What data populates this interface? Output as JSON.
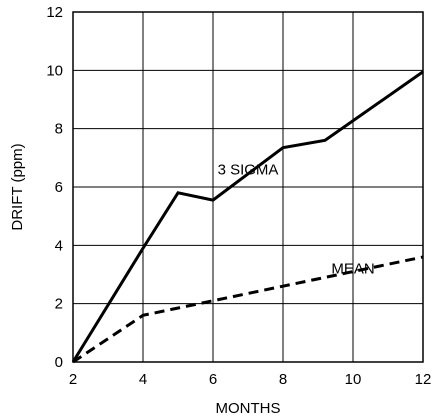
{
  "chart_data": {
    "type": "line",
    "title": "",
    "xlabel": "MONTHS",
    "ylabel": "DRIFT (ppm)",
    "xlim": [
      2,
      12
    ],
    "ylim": [
      0,
      12
    ],
    "x_ticks": [
      2,
      4,
      6,
      8,
      10,
      12
    ],
    "y_ticks": [
      0,
      2,
      4,
      6,
      8,
      10,
      12
    ],
    "x_tick_labels": [
      "2",
      "4",
      "6",
      "8",
      "10",
      "12"
    ],
    "y_tick_labels": [
      "0",
      "2",
      "4",
      "6",
      "8",
      "10",
      "12"
    ],
    "grid": true,
    "legend": "none",
    "series": [
      {
        "label": "3 SIGMA",
        "style": "solid",
        "color": "#000000",
        "x": [
          2,
          4,
          5,
          6,
          8,
          9.2,
          12
        ],
        "y": [
          0,
          3.9,
          5.8,
          5.55,
          7.35,
          7.6,
          9.95
        ]
      },
      {
        "label": "MEAN",
        "style": "dashed",
        "color": "#000000",
        "x": [
          2,
          4,
          12
        ],
        "y": [
          0,
          1.6,
          3.6
        ]
      }
    ],
    "annotations": [
      {
        "text": "3 SIGMA",
        "x": 7.0,
        "y": 6.6
      },
      {
        "text": "MEAN",
        "x": 10.0,
        "y": 3.2
      }
    ]
  }
}
